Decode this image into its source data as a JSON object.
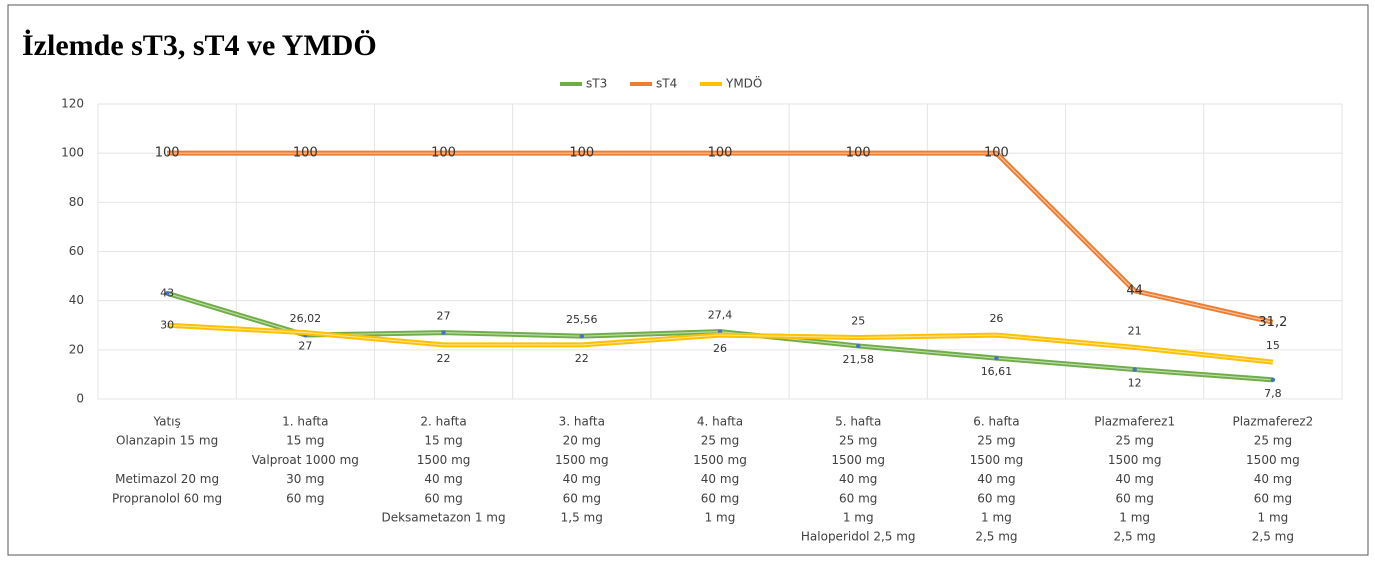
{
  "chart_data": {
    "type": "line",
    "title": "İzlemde sT3, sT4 ve YMDÖ",
    "categories": [
      [
        "Yatış",
        "Olanzapin 15 mg",
        null,
        "Metimazol 20 mg",
        "Propranolol 60 mg",
        null,
        null
      ],
      [
        "1. hafta",
        "15 mg",
        "Valproat 1000 mg",
        "30 mg",
        "60 mg",
        null,
        null
      ],
      [
        "2. hafta",
        "15 mg",
        "1500 mg",
        "40 mg",
        "60 mg",
        "Deksametazon 1 mg",
        null
      ],
      [
        "3. hafta",
        "20 mg",
        "1500 mg",
        "40 mg",
        "60 mg",
        "1,5 mg",
        null
      ],
      [
        "4. hafta",
        "25 mg",
        "1500 mg",
        "40 mg",
        "60 mg",
        "1 mg",
        null
      ],
      [
        "5. hafta",
        "25 mg",
        "1500 mg",
        "40 mg",
        "60 mg",
        "1 mg",
        "Haloperidol 2,5 mg"
      ],
      [
        "6. hafta",
        "25 mg",
        "1500 mg",
        "40 mg",
        "60 mg",
        "1 mg",
        "2,5 mg"
      ],
      [
        "Plazmaferez1",
        "25 mg",
        "1500 mg",
        "40 mg",
        "60 mg",
        "1 mg",
        "2,5 mg"
      ],
      [
        "Plazmaferez2",
        "25 mg",
        "1500 mg",
        "40 mg",
        "60 mg",
        "1 mg",
        "2,5 mg"
      ]
    ],
    "series": [
      {
        "name": "sT3",
        "color": "#70ad47",
        "values": [
          43,
          26.02,
          27,
          25.56,
          27.4,
          21.58,
          16.61,
          12,
          7.8
        ],
        "value_labels": [
          "43",
          "26,02",
          "27",
          "25,56",
          "27,4",
          "21,58",
          "16,61",
          "12",
          "7,8"
        ]
      },
      {
        "name": "sT4",
        "color": "#ed7d31",
        "values": [
          100,
          100,
          100,
          100,
          100,
          100,
          100,
          44,
          31.2
        ],
        "value_labels": [
          "100",
          "100",
          "100",
          "100",
          "100",
          "100",
          "100",
          "44",
          "31,2"
        ]
      },
      {
        "name": "YMDÖ",
        "color": "#ffc000",
        "values": [
          30,
          27,
          22,
          22,
          26,
          25,
          26,
          21,
          15
        ]
      }
    ],
    "ylim": [
      0,
      120
    ],
    "yticks": [
      0,
      20,
      40,
      60,
      80,
      100,
      120
    ],
    "grid": true,
    "legend": "top"
  }
}
